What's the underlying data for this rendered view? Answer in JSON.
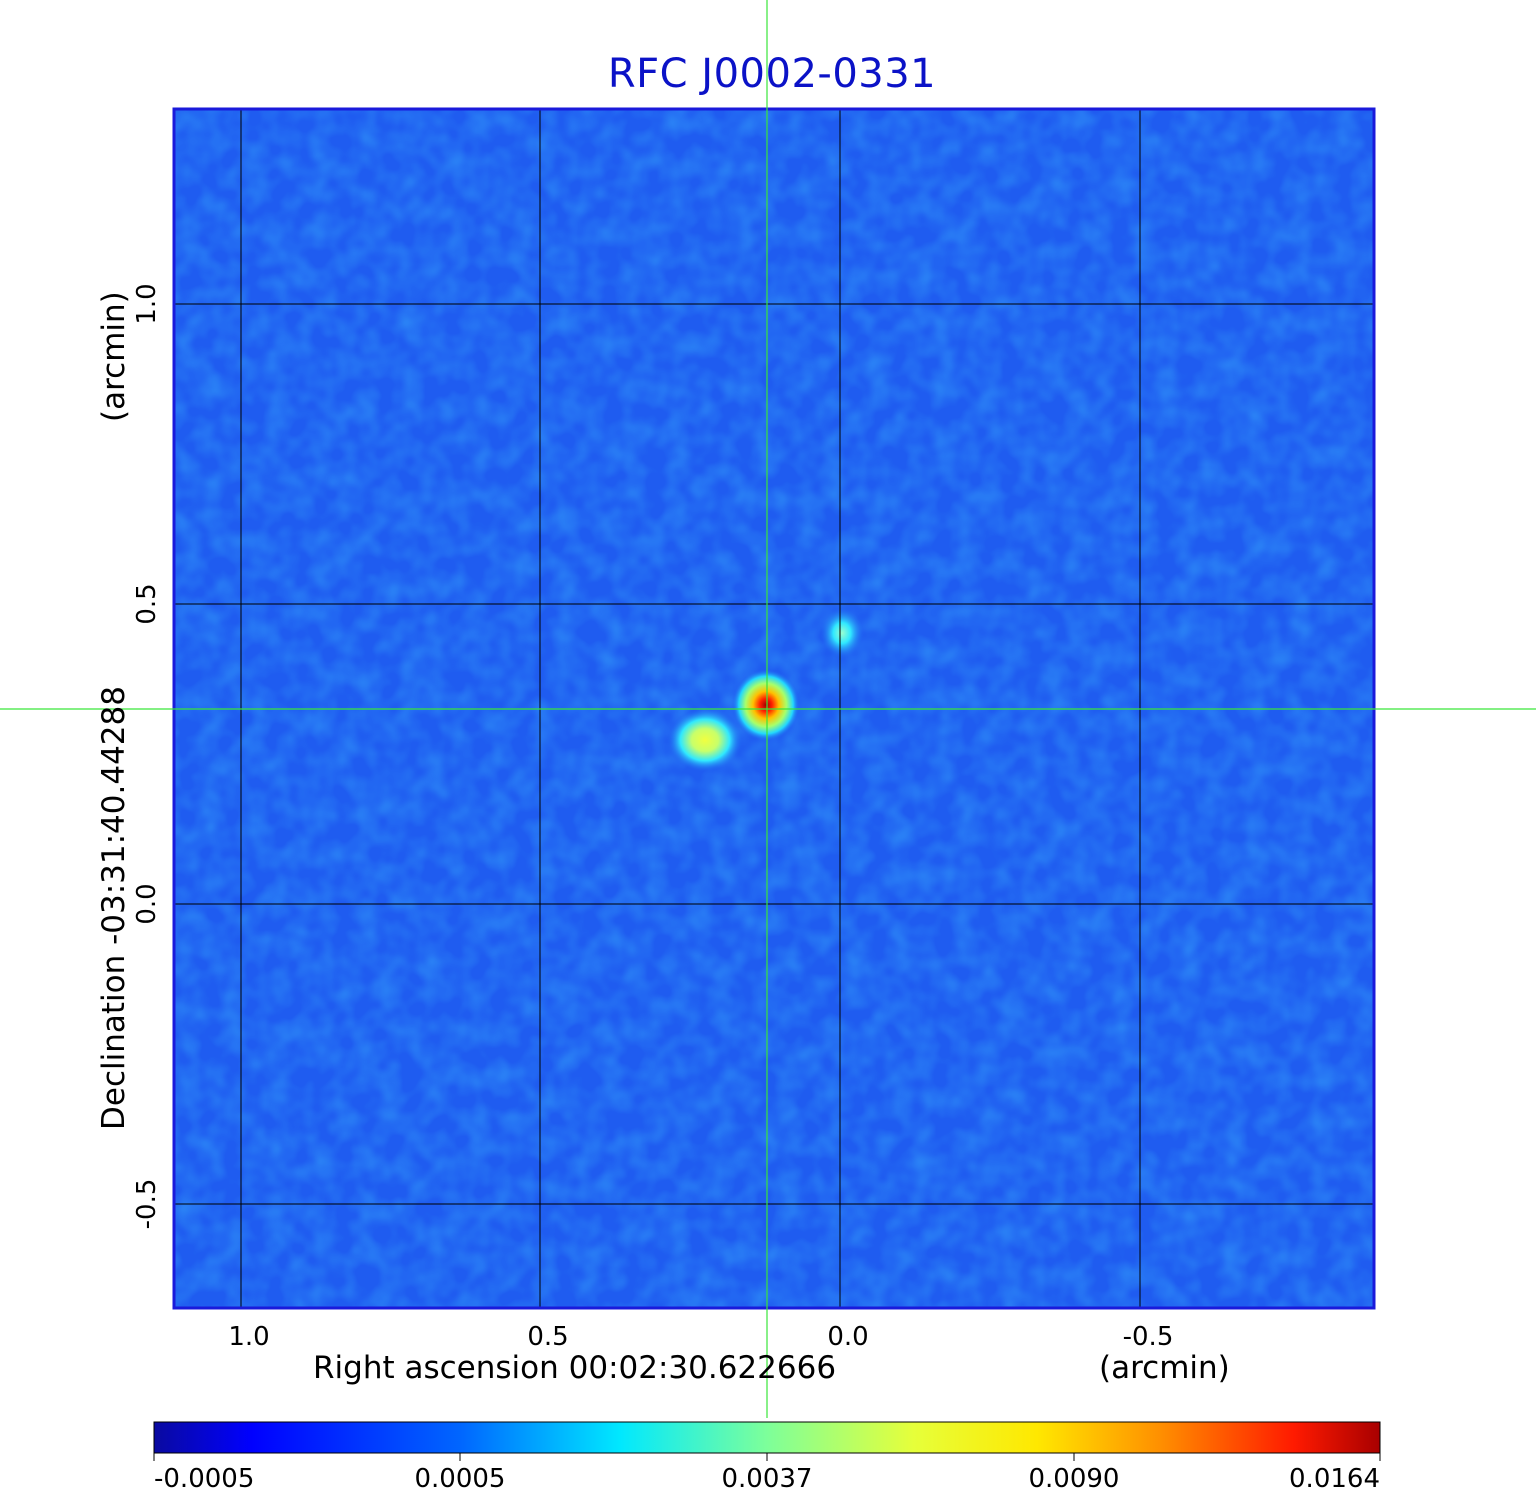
{
  "title": "RFC J0002-0331",
  "axes": {
    "x_label": "Right ascension  00:02:30.622666",
    "x_unit": "(arcmin)",
    "y_label": "Declination  -03:31:40.44288",
    "y_unit": "(arcmin)",
    "x_ticks": [
      "1.0",
      "0.5",
      "0.0",
      "-0.5"
    ],
    "y_ticks": [
      "1.0",
      "0.5",
      "0.0",
      "-0.5"
    ]
  },
  "colorbar": {
    "ticks": [
      "-0.0005",
      "0.0005",
      "0.0037",
      "0.0090",
      "0.0164"
    ]
  },
  "colors": {
    "title": "#0b12c7",
    "crosshair": "#39e639",
    "frame": "#1a1adb",
    "grid": "#000000",
    "background_field": "#1f5cf0"
  }
}
